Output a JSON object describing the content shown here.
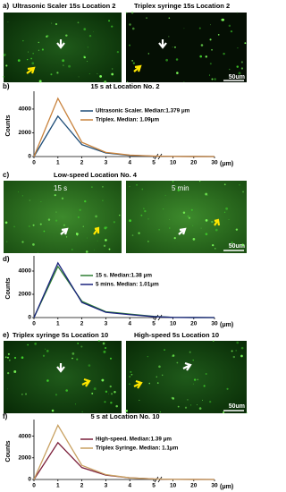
{
  "panels": {
    "a": {
      "label": "a)",
      "titles": [
        "Ultrasonic Scaler 15s Location 2",
        "Triplex syringe 15s Location 2"
      ],
      "scale": "50um"
    },
    "c": {
      "label": "c)",
      "title": "Low-speed   Location No. 4",
      "image_labels": [
        "15 s",
        "5 min"
      ],
      "scale": "50um"
    },
    "e": {
      "label": "e)",
      "titles": [
        "Triplex syringe 5s Location 10",
        "High-speed 5s Location 10"
      ],
      "scale": "50um"
    }
  },
  "chart_data": [
    {
      "type": "line",
      "label": "b)",
      "title": "15 s at Location No. 2",
      "ylabel": "Counts",
      "xlabel": "(μm)",
      "x": [
        0,
        1,
        2,
        3,
        4,
        5,
        10,
        20,
        30
      ],
      "xticks": [
        0,
        1,
        2,
        3,
        4,
        5,
        10,
        20,
        30
      ],
      "xlim_segments": [
        [
          0,
          5
        ],
        [
          5,
          30
        ]
      ],
      "ylim": [
        0,
        5200
      ],
      "yticks": [
        0,
        2000,
        4000
      ],
      "series": [
        {
          "name": "Ultrasonic Scaler. Median:1.379 μm",
          "color": "#1f4e79",
          "values": [
            0,
            3400,
            1000,
            300,
            100,
            30,
            10,
            5,
            0
          ]
        },
        {
          "name": "Triplex.  Median: 1.09μm",
          "color": "#c8823c",
          "values": [
            0,
            4900,
            1200,
            350,
            120,
            40,
            10,
            5,
            0
          ]
        }
      ]
    },
    {
      "type": "line",
      "label": "d)",
      "ylabel": "Counts",
      "xlabel": "(μm)",
      "x": [
        0,
        1,
        2,
        3,
        4,
        5,
        10,
        20,
        30
      ],
      "xticks": [
        0,
        1,
        2,
        3,
        4,
        5,
        10,
        20,
        30
      ],
      "xlim_segments": [
        [
          0,
          5
        ],
        [
          5,
          30
        ]
      ],
      "ylim": [
        0,
        5000
      ],
      "yticks": [
        0,
        2000,
        4000
      ],
      "series": [
        {
          "name": "15 s. Median:1.38 μm",
          "color": "#2e7d32",
          "values": [
            0,
            4400,
            1400,
            500,
            300,
            100,
            20,
            5,
            0
          ]
        },
        {
          "name": "5 mins. Median: 1.01μm",
          "color": "#1a237e",
          "values": [
            0,
            4700,
            1300,
            450,
            250,
            80,
            15,
            5,
            0
          ]
        }
      ]
    },
    {
      "type": "line",
      "label": "f)",
      "title": "5 s at Location No. 10",
      "ylabel": "Counts",
      "xlabel": "(μm)",
      "x": [
        0,
        1,
        2,
        3,
        4,
        5,
        10,
        20,
        30
      ],
      "xticks": [
        0,
        1,
        2,
        3,
        4,
        5,
        10,
        20,
        30
      ],
      "xlim_segments": [
        [
          0,
          5
        ],
        [
          5,
          30
        ]
      ],
      "ylim": [
        0,
        5200
      ],
      "yticks": [
        0,
        2000,
        4000
      ],
      "series": [
        {
          "name": "High-speed. Median:1.39 μm",
          "color": "#7b1f3a",
          "values": [
            0,
            3400,
            1100,
            400,
            150,
            50,
            10,
            5,
            0
          ]
        },
        {
          "name": "Triplex Syringe. Median: 1.1μm",
          "color": "#c8a060",
          "values": [
            0,
            5000,
            1300,
            450,
            150,
            50,
            10,
            5,
            0
          ]
        }
      ]
    }
  ]
}
